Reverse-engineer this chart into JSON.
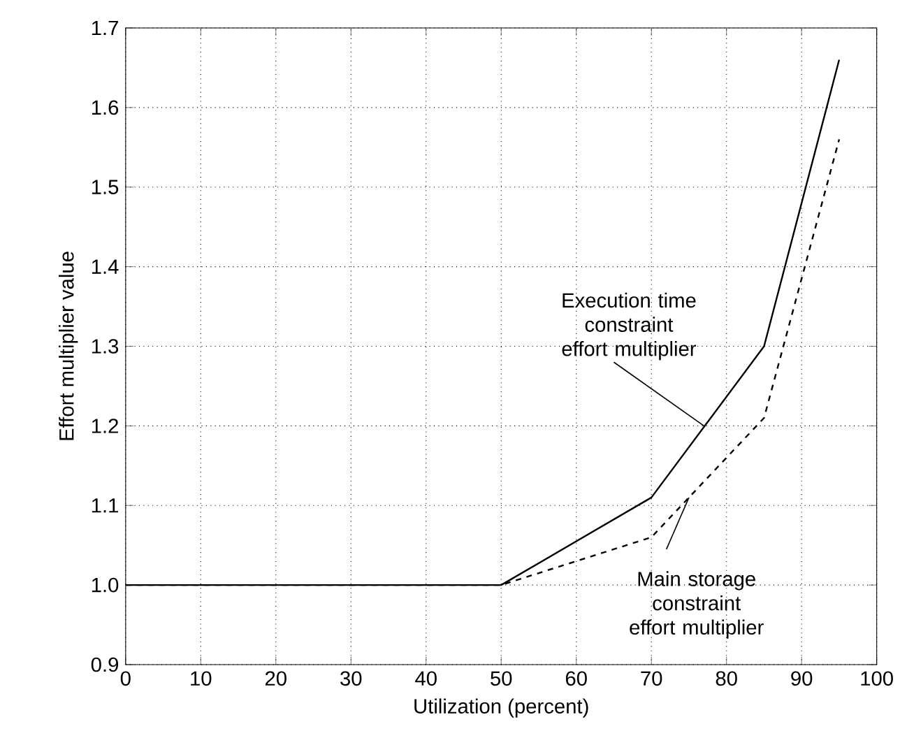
{
  "chart_data": {
    "type": "line",
    "xlabel": "Utilization (percent)",
    "ylabel": "Effort multiplier value",
    "x": [
      0,
      50,
      70,
      85,
      95
    ],
    "series": [
      {
        "color": "#000000",
        "line_style": "solid",
        "values": [
          1.0,
          1.0,
          1.11,
          1.3,
          1.66
        ]
      },
      {
        "color": "#000000",
        "line_style": "dashed",
        "values": [
          1.0,
          1.0,
          1.06,
          1.21,
          1.56
        ]
      }
    ],
    "annotations": [
      {
        "text": "Execution time constraint effort multiplier",
        "x": 77,
        "y": 1.2
      },
      {
        "text": "Main storage constraint effort multiplier",
        "x": 75,
        "y": 1.11
      }
    ],
    "xlim": [
      0,
      100
    ],
    "xticks": [
      0,
      10,
      20,
      30,
      40,
      50,
      60,
      70,
      80,
      90,
      100
    ],
    "ylim": [
      0.9,
      1.7
    ],
    "yticks": [
      0.9,
      {
        "value": 1.0,
        "label": "1.0"
      },
      1.1,
      1.2,
      1.3,
      1.4,
      1.5,
      1.6,
      1.7
    ],
    "grid": true,
    "marker": "none"
  }
}
